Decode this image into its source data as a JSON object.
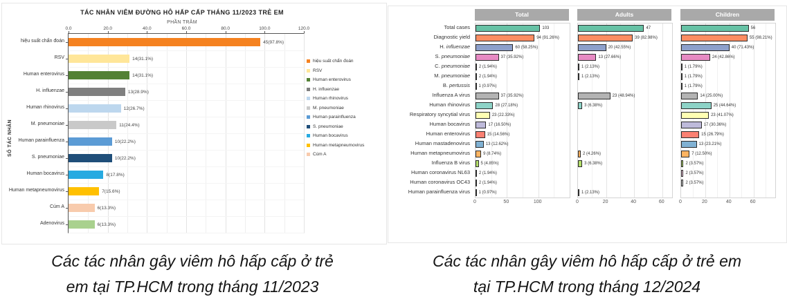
{
  "captions": {
    "left": "Các tác nhân gây viêm hô hấp cấp ở trẻ em tại TP.HCM trong tháng 11/2023",
    "right": "Các tác nhân gây viêm hô hấp cấp ở trẻ em tại TP.HCM trong tháng 12/2024"
  },
  "chart_data": [
    {
      "type": "bar",
      "orientation": "horizontal",
      "title": "TÁC NHÂN VIÊM ĐƯỜNG HÔ HẤP CẤP THÁNG 11/2023 TRẺ EM",
      "xlabel": "PHẦN TRĂM",
      "ylabel": "SỐ TÁC NHÂN",
      "xlim": [
        0,
        120
      ],
      "x_ticks": [
        "0.0",
        "20.0",
        "40.0",
        "60.0",
        "80.0",
        "100.0",
        "120.0"
      ],
      "grid": true,
      "legend_position": "right",
      "bars": [
        {
          "label": "hiệu suất chẩn đoán",
          "value_label": "45(97.8%)",
          "percent": 97.8,
          "color": "#F58220"
        },
        {
          "label": "RSV",
          "value_label": "14(31.1%)",
          "percent": 31.1,
          "color": "#FFE699"
        },
        {
          "label": "Human enterovirus",
          "value_label": "14(31.1%)",
          "percent": 31.1,
          "color": "#538135"
        },
        {
          "label": "H. influenzae",
          "value_label": "13(28.9%)",
          "percent": 28.9,
          "color": "#7F7F7F"
        },
        {
          "label": "Human rhinovirus",
          "value_label": "12(26.7%)",
          "percent": 26.7,
          "color": "#BDD7EE"
        },
        {
          "label": "M. pneumoniae",
          "value_label": "11(24.4%)",
          "percent": 24.4,
          "color": "#C9C9C9"
        },
        {
          "label": "Human parainfluenza",
          "value_label": "10(22.2%)",
          "percent": 22.2,
          "color": "#5B9BD5"
        },
        {
          "label": "S. pneumoniae",
          "value_label": "10(22.2%)",
          "percent": 22.2,
          "color": "#1F4E79"
        },
        {
          "label": "Human bocavirus",
          "value_label": "8(17.8%)",
          "percent": 17.8,
          "color": "#27AAE1"
        },
        {
          "label": "Human metapneumovirus",
          "value_label": "7(15.6%)",
          "percent": 15.6,
          "color": "#FFC000"
        },
        {
          "label": "Cúm A",
          "value_label": "6(13.3%)",
          "percent": 13.3,
          "color": "#F8CBAD"
        },
        {
          "label": "Adenovirus",
          "value_label": "6(13.3%)",
          "percent": 13.3,
          "color": "#A9D18E"
        }
      ],
      "legend": [
        {
          "label": "hiệu suất chẩn đoán",
          "color": "#F58220"
        },
        {
          "label": "RSV",
          "color": "#FFE699"
        },
        {
          "label": "Human enterovirus",
          "color": "#538135"
        },
        {
          "label": "H. influenzae",
          "color": "#7F7F7F"
        },
        {
          "label": "Human rhinovirus",
          "color": "#BDD7EE"
        },
        {
          "label": "M. pneumoniae",
          "color": "#C9C9C9"
        },
        {
          "label": "Human parainfluenza",
          "color": "#5B9BD5"
        },
        {
          "label": "S. pneumoniae",
          "color": "#1F4E79"
        },
        {
          "label": "Human bocavirus",
          "color": "#27AAE1"
        },
        {
          "label": "Human metapneumovirus",
          "color": "#FFC000"
        },
        {
          "label": "Cúm A",
          "color": "#F8CBAD"
        }
      ]
    },
    {
      "type": "bar",
      "orientation": "horizontal",
      "grid": true,
      "facets": [
        {
          "label": "Total",
          "key": "total",
          "xlim": [
            0,
            150
          ],
          "ticks": [
            0,
            50,
            100
          ]
        },
        {
          "label": "Adults",
          "key": "adults",
          "xlim": [
            0,
            67
          ],
          "ticks": [
            0,
            20,
            40,
            60
          ]
        },
        {
          "label": "Children",
          "key": "children",
          "xlim": [
            0,
            78
          ],
          "ticks": [
            0,
            20,
            40,
            60
          ]
        }
      ],
      "rows": [
        {
          "name": "Total cases",
          "italic": "",
          "color": "#66C2A5",
          "total": {
            "v": 103,
            "t": "103"
          },
          "adults": {
            "v": 47,
            "t": "47"
          },
          "children": {
            "v": 56,
            "t": "56"
          }
        },
        {
          "name": "Diagnostic yield",
          "italic": "",
          "color": "#FC8D62",
          "total": {
            "v": 94,
            "t": "94 (91.26%)"
          },
          "adults": {
            "v": 39,
            "t": "39 (82.98%)"
          },
          "children": {
            "v": 55,
            "t": "55 (98.21%)"
          }
        },
        {
          "name": "H. ",
          "italic": "influenzae",
          "color": "#8DA0CB",
          "total": {
            "v": 60,
            "t": "60 (58.25%)"
          },
          "adults": {
            "v": 20,
            "t": "20 (42.55%)"
          },
          "children": {
            "v": 40,
            "t": "40 (71.43%)"
          }
        },
        {
          "name": "S. ",
          "italic": "pneumoniae",
          "color": "#E78AC3",
          "total": {
            "v": 37,
            "t": "37 (35.92%)"
          },
          "adults": {
            "v": 13,
            "t": "13 (27.66%)"
          },
          "children": {
            "v": 24,
            "t": "24 (42.86%)"
          }
        },
        {
          "name": "C. ",
          "italic": "pneumoniae",
          "color": "#A6D854",
          "total": {
            "v": 2,
            "t": "2 (1.94%)"
          },
          "adults": {
            "v": 1,
            "t": "1 (2.13%)"
          },
          "children": {
            "v": 1,
            "t": "1 (1.79%)"
          }
        },
        {
          "name": "M. ",
          "italic": "pneumoniae",
          "color": "#FFD92F",
          "total": {
            "v": 2,
            "t": "2 (1.94%)"
          },
          "adults": {
            "v": 1,
            "t": "1 (2.13%)"
          },
          "children": {
            "v": 1,
            "t": "1 (1.79%)"
          }
        },
        {
          "name": "B. ",
          "italic": "pertussis",
          "color": "#E5C494",
          "total": {
            "v": 1,
            "t": "1 (0.97%)"
          },
          "adults": null,
          "children": {
            "v": 1,
            "t": "1 (1.79%)"
          }
        },
        {
          "name": "Influenza A virus",
          "italic": "",
          "color": "#B3B3B3",
          "total": {
            "v": 37,
            "t": "37 (35.92%)"
          },
          "adults": {
            "v": 23,
            "t": "23 (48.94%)"
          },
          "children": {
            "v": 14,
            "t": "14 (25.00%)"
          }
        },
        {
          "name": "Human rhinovirus",
          "italic": "",
          "color": "#8DD3C7",
          "total": {
            "v": 28,
            "t": "28 (27.18%)"
          },
          "adults": {
            "v": 3,
            "t": "3 (6.38%)"
          },
          "children": {
            "v": 25,
            "t": "25 (44.64%)"
          }
        },
        {
          "name": "Respiratory syncytial virus",
          "italic": "",
          "color": "#FFFFB3",
          "total": {
            "v": 23,
            "t": "23 (22.33%)"
          },
          "adults": null,
          "children": {
            "v": 23,
            "t": "23 (41.07%)"
          }
        },
        {
          "name": "Human bocavirus",
          "italic": "",
          "color": "#BEBADA",
          "total": {
            "v": 17,
            "t": "17 (16.50%)"
          },
          "adults": null,
          "children": {
            "v": 17,
            "t": "17 (30.36%)"
          }
        },
        {
          "name": "Human enterovirus",
          "italic": "",
          "color": "#FB8072",
          "total": {
            "v": 15,
            "t": "15 (14.56%)"
          },
          "adults": null,
          "children": {
            "v": 15,
            "t": "15 (26.79%)"
          }
        },
        {
          "name": "Human mastadenovirus",
          "italic": "",
          "color": "#80B1D3",
          "total": {
            "v": 13,
            "t": "13 (12.62%)"
          },
          "adults": null,
          "children": {
            "v": 13,
            "t": "13 (23.21%)"
          }
        },
        {
          "name": "Human metapneumovirus",
          "italic": "",
          "color": "#FDB462",
          "total": {
            "v": 9,
            "t": "9 (8.74%)"
          },
          "adults": {
            "v": 2,
            "t": "2 (4.26%)"
          },
          "children": {
            "v": 7,
            "t": "7 (12.50%)"
          }
        },
        {
          "name": "Influenza B virus",
          "italic": "",
          "color": "#B3DE69",
          "total": {
            "v": 5,
            "t": "5 (4.85%)"
          },
          "adults": {
            "v": 3,
            "t": "3 (6.38%)"
          },
          "children": {
            "v": 2,
            "t": "2 (3.57%)"
          }
        },
        {
          "name": "Human coronavirus NL63",
          "italic": "",
          "color": "#FCCDE5",
          "total": {
            "v": 2,
            "t": "2 (1.94%)"
          },
          "adults": null,
          "children": {
            "v": 2,
            "t": "2 (3.57%)"
          }
        },
        {
          "name": "Human coronavirus OC43",
          "italic": "",
          "color": "#D9D9D9",
          "total": {
            "v": 2,
            "t": "2 (1.94%)"
          },
          "adults": null,
          "children": {
            "v": 2,
            "t": "2 (3.57%)"
          }
        },
        {
          "name": "Human parainfluenza virus",
          "italic": "",
          "color": "#BC80BD",
          "total": {
            "v": 1,
            "t": "1 (0.97%)"
          },
          "adults": {
            "v": 1,
            "t": "1 (2.13%)"
          },
          "children": null
        }
      ]
    }
  ]
}
